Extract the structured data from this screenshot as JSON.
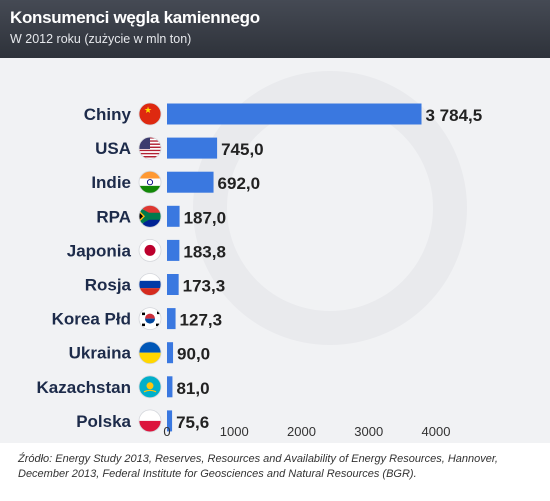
{
  "header": {
    "title": "Konsumenci węgla kamiennego",
    "subtitle": "W 2012 roku (zużycie w mln ton)"
  },
  "source": "Źródło: Energy Study 2013, Reserves, Resources and Availability of Energy  Resources, Hannover, December 2013, Federal Institute for Geosciences and Natural Resources (BGR).",
  "colors": {
    "bar": "#3a78e0",
    "header_bg": "#3b3f48",
    "panel_bg": "#f1f2f4",
    "label_text": "#1d2b4a"
  },
  "chart_data": {
    "type": "bar",
    "orientation": "horizontal",
    "categories": [
      "Chiny",
      "USA",
      "Indie",
      "RPA",
      "Japonia",
      "Rosja",
      "Korea Płd",
      "Ukraina",
      "Kazachstan",
      "Polska"
    ],
    "values": [
      3784.5,
      745.0,
      692.0,
      187.0,
      183.8,
      173.3,
      127.3,
      90.0,
      81.0,
      75.6
    ],
    "value_labels": [
      "3 784,5",
      "745,0",
      "692,0",
      "187,0",
      "183,8",
      "173,3",
      "127,3",
      "90,0",
      "81,0",
      "75,6"
    ],
    "flag_icons": [
      "flag-china-icon",
      "flag-usa-icon",
      "flag-india-icon",
      "flag-south-africa-icon",
      "flag-japan-icon",
      "flag-russia-icon",
      "flag-south-korea-icon",
      "flag-ukraine-icon",
      "flag-kazakhstan-icon",
      "flag-poland-icon"
    ],
    "xticks": [
      "0",
      "1000",
      "2000",
      "3000",
      "4000"
    ],
    "xlim": [
      0,
      4000
    ],
    "grid": false
  }
}
